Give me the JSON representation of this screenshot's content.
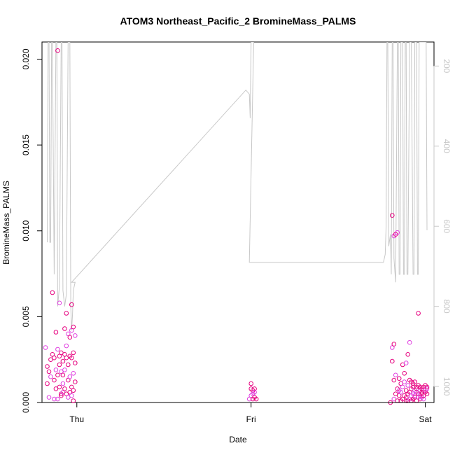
{
  "chart_data": {
    "type": "scatter",
    "title": "ATOM3 Northeast_Pacific_2 BromineMass_PALMS",
    "xlabel": "Date",
    "ylabel": "BromineMass_PALMS",
    "x_ticks": [
      "Thu",
      "Fri",
      "Sat"
    ],
    "x_tick_values": [
      0,
      1,
      2
    ],
    "xlim": [
      -0.2,
      2.05
    ],
    "ylim": [
      0,
      0.021
    ],
    "y_ticks": [
      "0.000",
      "0.005",
      "0.010",
      "0.015",
      "0.020"
    ],
    "y_tick_values": [
      0,
      0.005,
      0.01,
      0.015,
      0.02
    ],
    "y2lim": [
      1040,
      140
    ],
    "y2_ticks": [
      "200",
      "400",
      "600",
      "800",
      "1000"
    ],
    "y2_tick_values": [
      200,
      400,
      600,
      800,
      1000
    ],
    "colors": {
      "points": "#e6007e",
      "points_alt": "#e040e0",
      "pressure_line": "#c8c8c8",
      "axis": "#000000",
      "right_axis": "#c8c8c8"
    },
    "series": [
      {
        "kind": "points",
        "x": [
          -0.18,
          -0.17,
          -0.17,
          -0.16,
          -0.16,
          -0.15,
          -0.15,
          -0.14,
          -0.14,
          -0.13,
          -0.13,
          -0.13,
          -0.12,
          -0.12,
          -0.12,
          -0.11,
          -0.11,
          -0.11,
          -0.11,
          -0.1,
          -0.1,
          -0.1,
          -0.1,
          -0.09,
          -0.09,
          -0.09,
          -0.09,
          -0.08,
          -0.08,
          -0.08,
          -0.08,
          -0.07,
          -0.07,
          -0.07,
          -0.07,
          -0.06,
          -0.06,
          -0.06,
          -0.06,
          -0.05,
          -0.05,
          -0.05,
          -0.05,
          -0.04,
          -0.04,
          -0.04,
          -0.04,
          -0.03,
          -0.03,
          -0.03,
          -0.03,
          -0.03,
          -0.02,
          -0.02,
          -0.02,
          -0.02,
          -0.02,
          -0.01,
          -0.01,
          -0.01,
          0.99,
          1.0,
          1.0,
          1.0,
          1.01,
          1.01,
          1.01,
          1.02,
          1.02,
          1.02,
          1.03,
          1.8,
          1.81,
          1.81,
          1.81,
          1.82,
          1.82,
          1.82,
          1.82,
          1.83,
          1.83,
          1.83,
          1.84,
          1.84,
          1.84,
          1.85,
          1.85,
          1.85,
          1.86,
          1.86,
          1.86,
          1.87,
          1.87,
          1.87,
          1.88,
          1.88,
          1.88,
          1.89,
          1.89,
          1.89,
          1.89,
          1.9,
          1.9,
          1.9,
          1.9,
          1.91,
          1.91,
          1.91,
          1.91,
          1.92,
          1.92,
          1.92,
          1.92,
          1.93,
          1.93,
          1.93,
          1.93,
          1.94,
          1.94,
          1.94,
          1.94,
          1.95,
          1.95,
          1.95,
          1.95,
          1.96,
          1.96,
          1.96,
          1.96,
          1.97,
          1.97,
          1.97,
          1.97,
          1.98,
          1.98,
          1.98,
          1.98,
          1.99,
          1.99,
          1.99,
          1.99,
          2.0,
          2.0,
          2.0,
          2.01,
          2.01,
          2.01
        ],
        "y": [
          0.0032,
          0.0021,
          0.0011,
          0.0003,
          0.0018,
          0.0025,
          0.0015,
          0.0028,
          0.0064,
          0.0002,
          0.0013,
          0.0026,
          0.0019,
          0.0041,
          0.0008,
          0.0031,
          0.0205,
          0.0016,
          0.0002,
          0.0027,
          0.0022,
          0.0058,
          0.0009,
          0.0005,
          0.0018,
          0.0029,
          0.0004,
          0.0011,
          0.0024,
          0.0016,
          0.0006,
          0.0043,
          0.0028,
          0.0019,
          0.0008,
          0.0052,
          0.0033,
          0.0026,
          0.0005,
          0.004,
          0.0022,
          0.0013,
          0.0003,
          0.0038,
          0.0027,
          0.0015,
          0.0006,
          0.0057,
          0.0042,
          0.0026,
          0.0009,
          0.0004,
          0.0044,
          0.0029,
          0.0017,
          0.0007,
          0.0001,
          0.0039,
          0.0023,
          0.0012,
          0.0002,
          0.0011,
          0.0008,
          0.0004,
          0.0007,
          0.0002,
          0.0005,
          0.0008,
          0.0003,
          0.0006,
          0.0002,
          0.0,
          0.0032,
          0.0024,
          0.0109,
          0.0097,
          0.0013,
          0.0034,
          0.0002,
          0.0098,
          0.0005,
          0.0016,
          0.0008,
          0.0001,
          0.0099,
          0.0004,
          0.0014,
          0.0007,
          0.0011,
          0.0001,
          0.0006,
          0.0022,
          0.0002,
          0.0009,
          0.0017,
          0.0004,
          0.0012,
          0.0001,
          0.0007,
          0.0023,
          0.0003,
          0.0028,
          0.001,
          0.0005,
          0.0001,
          0.0035,
          0.0013,
          0.0006,
          0.0002,
          0.0008,
          0.0012,
          0.0004,
          0.0001,
          0.0009,
          0.0005,
          0.0002,
          0.0011,
          0.0007,
          0.0003,
          0.0012,
          0.0004,
          0.0009,
          0.0001,
          0.0006,
          0.0008,
          0.0052,
          0.0003,
          0.001,
          0.0005,
          0.0007,
          0.0002,
          0.0009,
          0.0004,
          0.0006,
          0.0008,
          0.0003,
          0.0005,
          0.0007,
          0.0002,
          0.0009,
          0.0004,
          0.0007,
          0.001,
          0.0006,
          0.0008,
          0.0005,
          0.0009
        ]
      },
      {
        "kind": "pressure_line",
        "x": [
          -0.17,
          -0.165,
          -0.16,
          -0.155,
          -0.15,
          -0.145,
          -0.14,
          -0.13,
          -0.12,
          -0.115,
          -0.11,
          -0.1,
          -0.09,
          -0.085,
          -0.08,
          -0.07,
          -0.06,
          -0.05,
          -0.04,
          -0.035,
          -0.03,
          -0.025,
          -0.02,
          -0.015,
          -0.01,
          -0.03,
          0.97,
          0.99,
          0.995,
          1.0,
          1.005,
          1.01,
          1.015,
          0.99,
          1.76,
          1.77,
          1.775,
          1.78,
          1.785,
          1.79,
          1.8,
          1.805,
          1.81,
          1.815,
          1.82,
          1.83,
          1.84,
          1.845,
          1.85,
          1.855,
          1.86,
          1.87,
          1.875,
          1.88,
          1.885,
          1.89,
          1.895,
          1.9,
          1.91,
          1.915,
          1.92,
          1.93,
          1.935,
          1.94,
          1.95,
          1.955,
          1.96,
          1.965,
          1.97,
          1.98,
          1.99,
          2.0,
          2.005,
          2.01
        ],
        "y": [
          640,
          140,
          140,
          640,
          640,
          140,
          140,
          720,
          140,
          140,
          800,
          750,
          140,
          140,
          760,
          800,
          770,
          140,
          140,
          800,
          860,
          820,
          760,
          750,
          740,
          740,
          260,
          270,
          330,
          140,
          140,
          140,
          140,
          690,
          690,
          670,
          600,
          140,
          140,
          650,
          620,
          720,
          140,
          140,
          680,
          740,
          140,
          140,
          720,
          720,
          140,
          140,
          720,
          720,
          140,
          140,
          720,
          720,
          140,
          140,
          140,
          720,
          720,
          140,
          140,
          720,
          720,
          140,
          140,
          140,
          140,
          140,
          140,
          610
        ]
      }
    ]
  }
}
